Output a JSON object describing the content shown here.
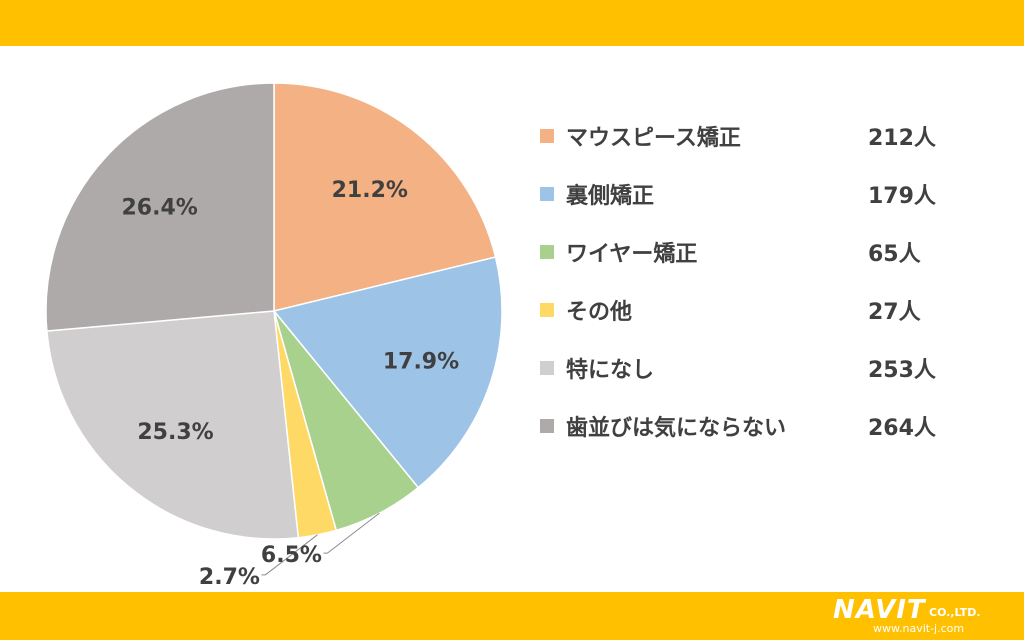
{
  "chart_data": {
    "type": "pie",
    "start_angle_deg": 0,
    "direction": "clockwise",
    "legend_position": "right",
    "slices": [
      {
        "label": "マウスピース矯正",
        "count": "212人",
        "percent": 21.2,
        "percent_label": "21.2%",
        "color": "#F4B183"
      },
      {
        "label": "裏側矯正",
        "count": "179人",
        "percent": 17.9,
        "percent_label": "17.9%",
        "color": "#9DC3E6"
      },
      {
        "label": "ワイヤー矯正",
        "count": "65人",
        "percent": 6.5,
        "percent_label": "6.5%",
        "color": "#A9D18E"
      },
      {
        "label": "その他",
        "count": "27人",
        "percent": 2.7,
        "percent_label": "2.7%",
        "color": "#FFD966"
      },
      {
        "label": "特になし",
        "count": "253人",
        "percent": 25.3,
        "percent_label": "25.3%",
        "color": "#D0CECE"
      },
      {
        "label": "歯並びは気にならない",
        "count": "264人",
        "percent": 26.4,
        "percent_label": "26.4%",
        "color": "#AEAAAA"
      }
    ]
  },
  "colors": {
    "band": "#FFC000",
    "text": "#404040"
  },
  "logo": {
    "brand": "NAVIT",
    "suffix": "CO.,LTD.",
    "url": "www.navit-j.com"
  }
}
